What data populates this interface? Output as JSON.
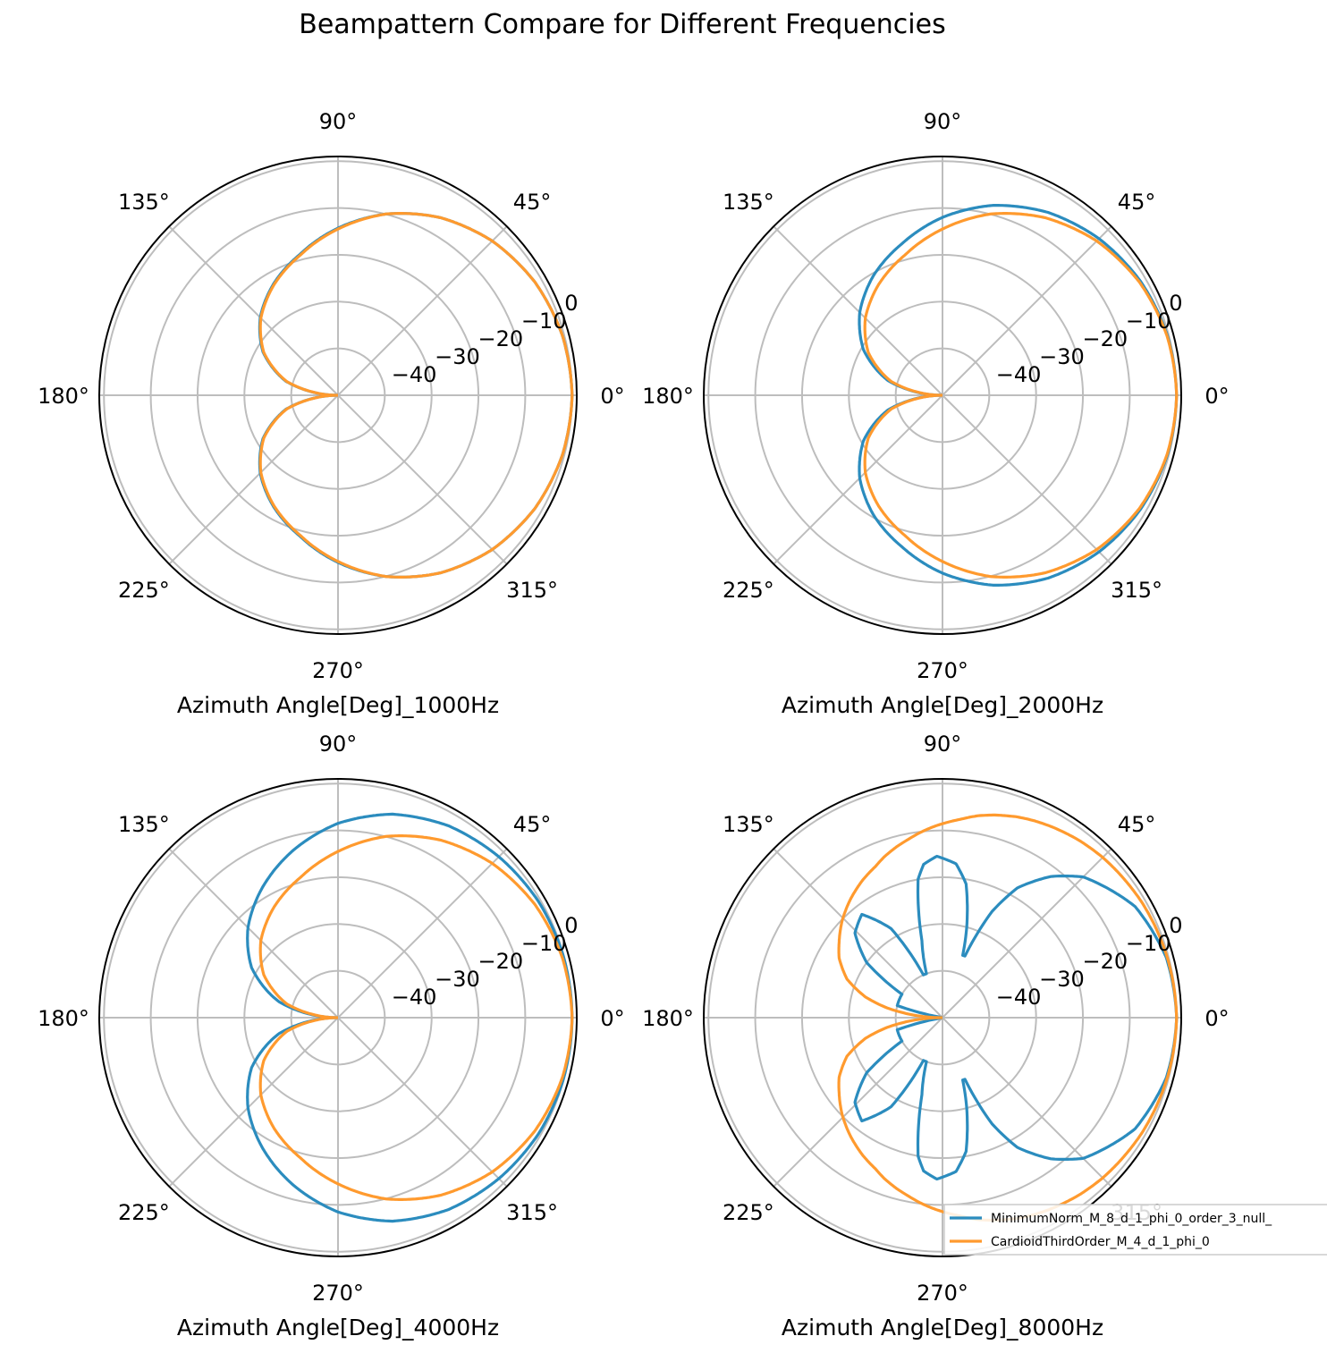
{
  "title": "Beampattern Compare for Different Frequencies",
  "colors": {
    "series_1": "#2b8cbe",
    "series_2": "#ff9a2e",
    "grid": "#bdbdbd",
    "spine": "#000000"
  },
  "legend": {
    "placement": "bottom-right of last subplot",
    "entries": [
      "MinimumNorm_M_8_d_1_phi_0_order_3_null_",
      "CardioidThirdOrder_M_4_d_1_phi_0"
    ]
  },
  "chart_data": [
    {
      "type": "polar-line",
      "xlabel": "Azimuth Angle[Deg]_1000Hz",
      "theta_ticks": [
        "0°",
        "45°",
        "90°",
        "135°",
        "180°",
        "225°",
        "270°",
        "315°"
      ],
      "r_ticks": [
        "−40",
        "−30",
        "−20",
        "−10",
        "0"
      ],
      "r_range_db": [
        -50,
        1
      ],
      "grid": true,
      "theta_deg": [
        0,
        15,
        30,
        45,
        60,
        75,
        90,
        105,
        120,
        135,
        150,
        165,
        180
      ],
      "series": [
        {
          "name": "MinimumNorm_M_8_d_1_phi_0_order_3_null_",
          "values_db": [
            0,
            -0.4,
            -1.5,
            -3.4,
            -6.2,
            -9.9,
            -14.3,
            -18.8,
            -22.5,
            -26.5,
            -31.5,
            -38.5,
            -50
          ]
        },
        {
          "name": "CardioidThirdOrder_M_4_d_1_phi_0",
          "values_db": [
            0,
            -0.4,
            -1.5,
            -3.4,
            -6.2,
            -9.9,
            -14.5,
            -19,
            -22.7,
            -26.7,
            -31.7,
            -38.7,
            -50
          ]
        }
      ]
    },
    {
      "type": "polar-line",
      "xlabel": "Azimuth Angle[Deg]_2000Hz",
      "theta_ticks": [
        "0°",
        "45°",
        "90°",
        "135°",
        "180°",
        "225°",
        "270°",
        "315°"
      ],
      "r_ticks": [
        "−40",
        "−30",
        "−20",
        "−10",
        "0"
      ],
      "r_range_db": [
        -50,
        1
      ],
      "grid": true,
      "theta_deg": [
        0,
        15,
        30,
        45,
        60,
        75,
        90,
        105,
        120,
        135,
        150,
        165,
        180
      ],
      "series": [
        {
          "name": "MinimumNorm_M_8_d_1_phi_0_order_3_null_",
          "values_db": [
            0,
            -0.3,
            -1.2,
            -2.7,
            -4.9,
            -8,
            -12,
            -16.5,
            -20.5,
            -25,
            -30.5,
            -38,
            -50
          ]
        },
        {
          "name": "CardioidThirdOrder_M_4_d_1_phi_0",
          "values_db": [
            0,
            -0.4,
            -1.5,
            -3.4,
            -6.2,
            -9.9,
            -14.5,
            -19,
            -22.7,
            -26.7,
            -31.7,
            -38.7,
            -50
          ]
        }
      ]
    },
    {
      "type": "polar-line",
      "xlabel": "Azimuth Angle[Deg]_4000Hz",
      "theta_ticks": [
        "0°",
        "45°",
        "90°",
        "135°",
        "180°",
        "225°",
        "270°",
        "315°"
      ],
      "r_ticks": [
        "−40",
        "−30",
        "−20",
        "−10",
        "0"
      ],
      "r_range_db": [
        -50,
        1
      ],
      "grid": true,
      "theta_deg": [
        0,
        15,
        30,
        45,
        60,
        75,
        90,
        105,
        120,
        135,
        150,
        165,
        180
      ],
      "series": [
        {
          "name": "MinimumNorm_M_8_d_1_phi_0_order_3_null_",
          "values_db": [
            0,
            -0.1,
            -0.5,
            -1.4,
            -2.7,
            -5,
            -8.5,
            -13,
            -17.8,
            -22.8,
            -28.7,
            -37,
            -50
          ]
        },
        {
          "name": "CardioidThirdOrder_M_4_d_1_phi_0",
          "values_db": [
            0,
            -0.4,
            -1.5,
            -3.4,
            -6.2,
            -9.9,
            -14.5,
            -19,
            -22.7,
            -26.7,
            -31.7,
            -38.7,
            -50
          ]
        }
      ]
    },
    {
      "type": "polar-line",
      "xlabel": "Azimuth Angle[Deg]_8000Hz",
      "theta_ticks": [
        "0°",
        "45°",
        "90°",
        "135°",
        "180°",
        "225°",
        "270°",
        "315°"
      ],
      "r_ticks": [
        "−40",
        "−30",
        "−20",
        "−10",
        "0"
      ],
      "r_range_db": [
        -50,
        1
      ],
      "grid": true,
      "theta_deg": [
        0,
        15,
        30,
        45,
        52.5,
        60,
        65,
        70,
        72,
        75,
        80,
        85,
        92,
        97,
        100,
        102,
        105,
        110,
        114,
        120,
        128,
        136,
        144,
        150,
        158,
        165,
        170,
        175,
        180
      ],
      "series": [
        {
          "name": "MinimumNorm_M_8_d_1_phi_0_order_3_null_",
          "values_db": [
            0,
            -0.5,
            -2.5,
            -7.5,
            -12,
            -18,
            -25,
            -36,
            -36,
            -30,
            -21,
            -17,
            -15.5,
            -17,
            -20,
            -25,
            -33,
            -40,
            -40,
            -28,
            -22,
            -24,
            -30,
            -40,
            -40,
            -40,
            -50,
            -50,
            -50
          ]
        },
        {
          "name": "CardioidThirdOrder_M_4_d_1_phi_0",
          "values_db": [
            0,
            -0.3,
            -0.8,
            -1.6,
            -2.2,
            -3,
            -3.6,
            -4.3,
            -4.7,
            -5.2,
            -6.2,
            -7.5,
            -9,
            -10.2,
            -11,
            -11.5,
            -12.2,
            -13.5,
            -14.7,
            -16,
            -18,
            -20.2,
            -22.7,
            -24.5,
            -28,
            -33,
            -38,
            -44,
            -50
          ]
        }
      ]
    }
  ]
}
